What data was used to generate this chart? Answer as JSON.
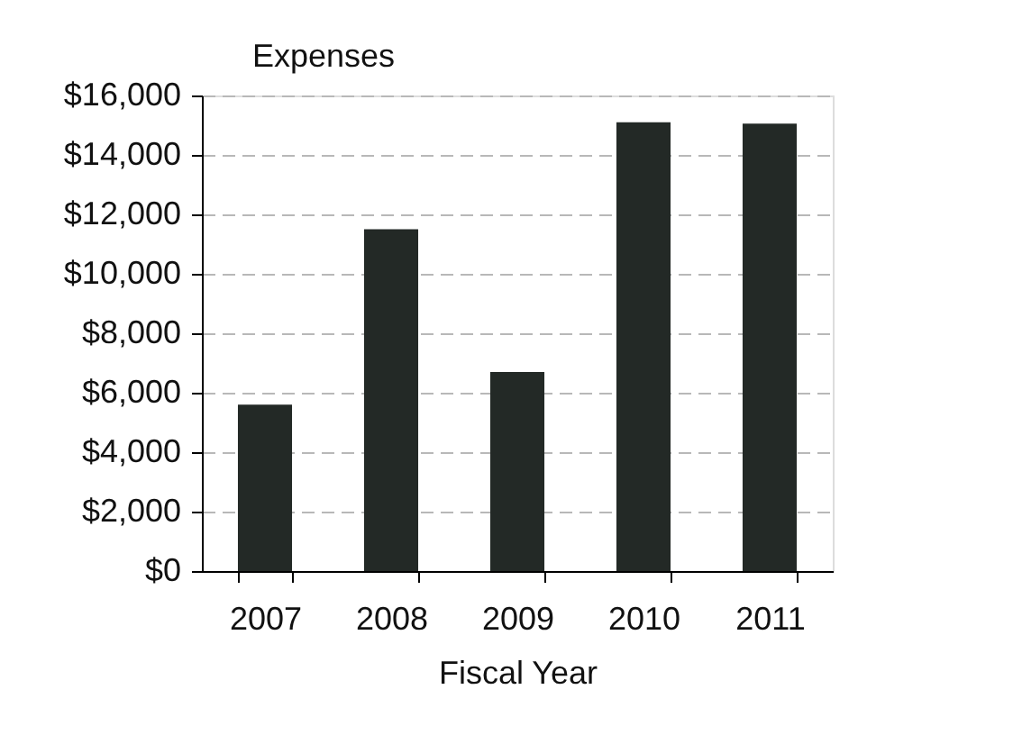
{
  "chart_data": {
    "type": "bar",
    "title": "Expenses",
    "xlabel": "Fiscal Year",
    "categories": [
      "2007",
      "2008",
      "2009",
      "2010",
      "2011"
    ],
    "values": [
      5600,
      11500,
      6700,
      15100,
      15050
    ],
    "color": "#232926",
    "ylim": [
      0,
      16000
    ],
    "yticks": [
      {
        "value": 0,
        "label": "$0"
      },
      {
        "value": 2000,
        "label": "$2,000"
      },
      {
        "value": 4000,
        "label": "$4,000"
      },
      {
        "value": 6000,
        "label": "$6,000"
      },
      {
        "value": 8000,
        "label": "$8,000"
      },
      {
        "value": 10000,
        "label": "$10,000"
      },
      {
        "value": 12000,
        "label": "$12,000"
      },
      {
        "value": 14000,
        "label": "$14,000"
      },
      {
        "value": 16000,
        "label": "$16,000"
      }
    ],
    "grid": "y"
  }
}
